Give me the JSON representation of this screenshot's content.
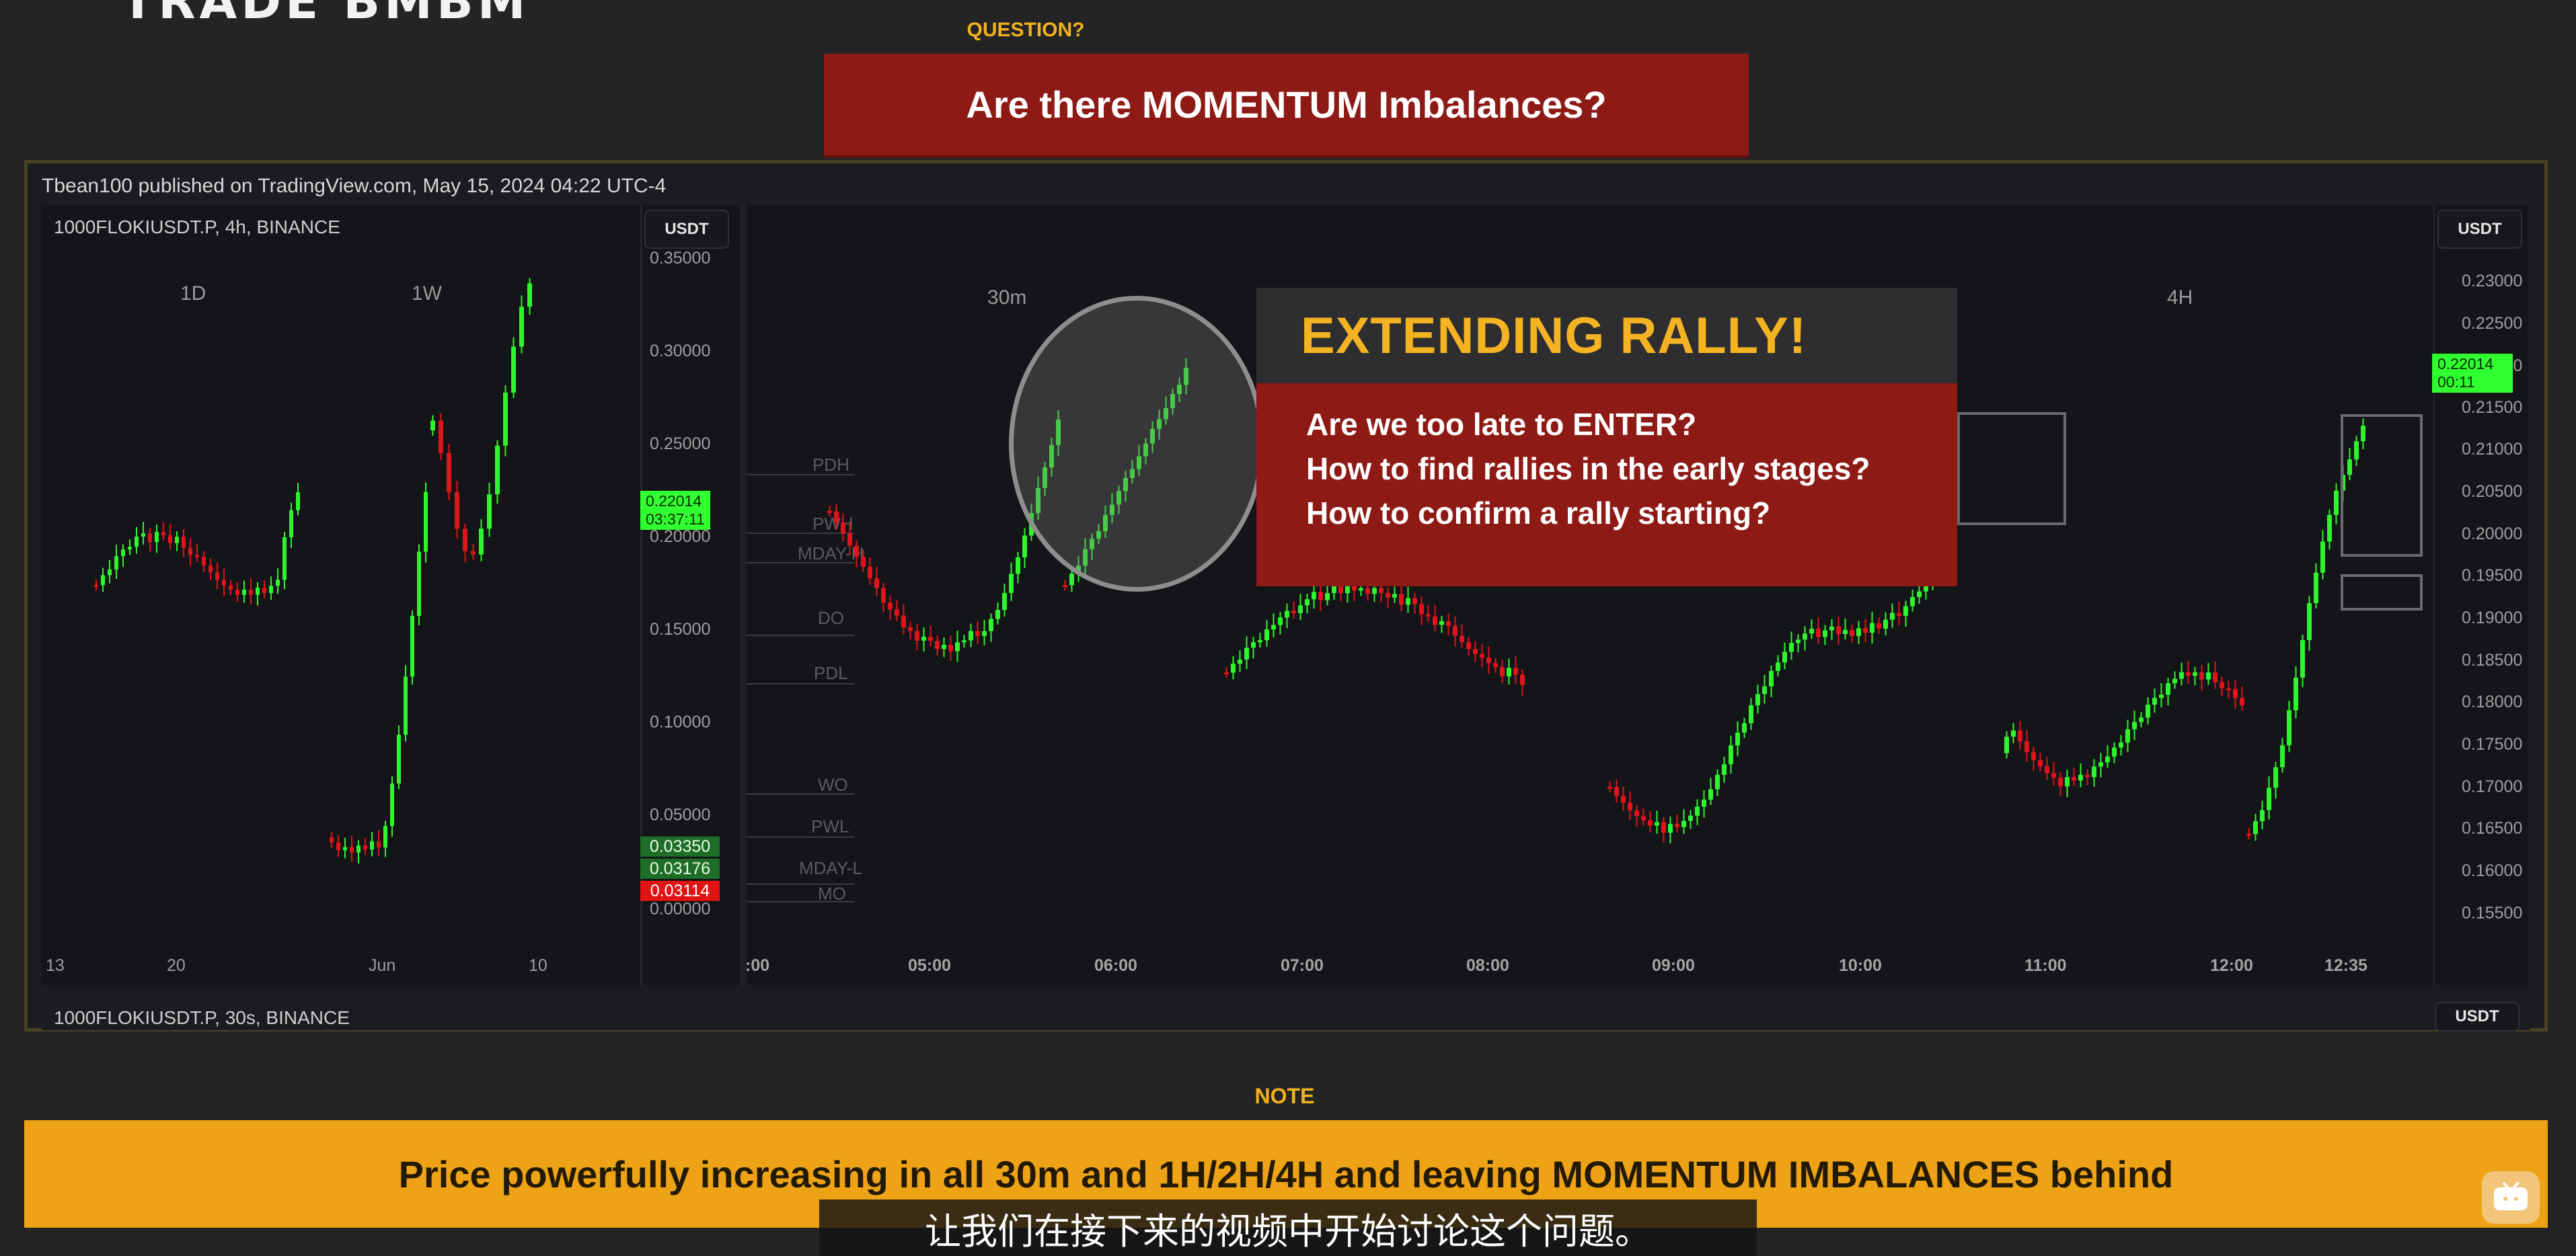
{
  "header": {
    "logo_text": "TRADE BMBM",
    "question_label": "QUESTION?",
    "question_text": "Are there MOMENTUM Imbalances?"
  },
  "chart_panel": {
    "published": "Tbean100 published on TradingView.com, May 15, 2024 04:22 UTC-4",
    "top_symbol": "1000FLOKIUSDT.P, 4h, BINANCE",
    "bottom_symbol": "1000FLOKIUSDT.P, 30s, BINANCE",
    "currency_btn": "USDT",
    "left_timeframes": [
      "1D",
      "1W"
    ],
    "mid_timeframe": "30m",
    "right_timeframe": "4H",
    "left_y_ticks": [
      "0.35000",
      "0.30000",
      "0.25000",
      "0.20000",
      "0.15000",
      "0.10000",
      "0.05000",
      "0.00000"
    ],
    "left_price_badge": [
      "0.22014",
      "03:37:11"
    ],
    "left_small_badges": [
      "0.03350",
      "0.03176",
      "0.03114"
    ],
    "left_x_ticks": [
      "13",
      "20",
      "Jun",
      "10"
    ],
    "mid_levels": [
      "PDH",
      "PWH",
      "MDAY-H",
      "DO",
      "PDL",
      "WO",
      "PWL",
      "MDAY-L",
      "MO"
    ],
    "right_y_ticks": [
      "0.23000",
      "0.22500",
      "0.22000",
      "0.21500",
      "0.21000",
      "0.20500",
      "0.20000",
      "0.19500",
      "0.19000",
      "0.18500",
      "0.18000",
      "0.17500",
      "0.17000",
      "0.16500",
      "0.16000",
      "0.15500"
    ],
    "right_price_badge": [
      "0.22014",
      "00:11"
    ],
    "right_x_ticks": [
      ":00",
      "05:00",
      "06:00",
      "07:00",
      "08:00",
      "09:00",
      "10:00",
      "11:00",
      "12:00",
      "12:35"
    ]
  },
  "overlay": {
    "title": "EXTENDING RALLY!",
    "lines": [
      "Are we too late to ENTER?",
      "How to find rallies in the early stages?",
      "How to confirm a rally starting?"
    ]
  },
  "note": {
    "label": "NOTE",
    "text": "Price powerfully increasing in all 30m and 1H/2H/4H and leaving MOMENTUM IMBALANCES behind"
  },
  "subtitle": "让我们在接下来的视频中开始讨论这个问题。",
  "colors": {
    "bull": "#2ff52f",
    "bear": "#e0141b",
    "accent_gold": "#f2b21f",
    "banner_red": "#8e1a16",
    "note_orange": "#eea316"
  },
  "icons": {
    "watermark": "tv-play-icon"
  }
}
